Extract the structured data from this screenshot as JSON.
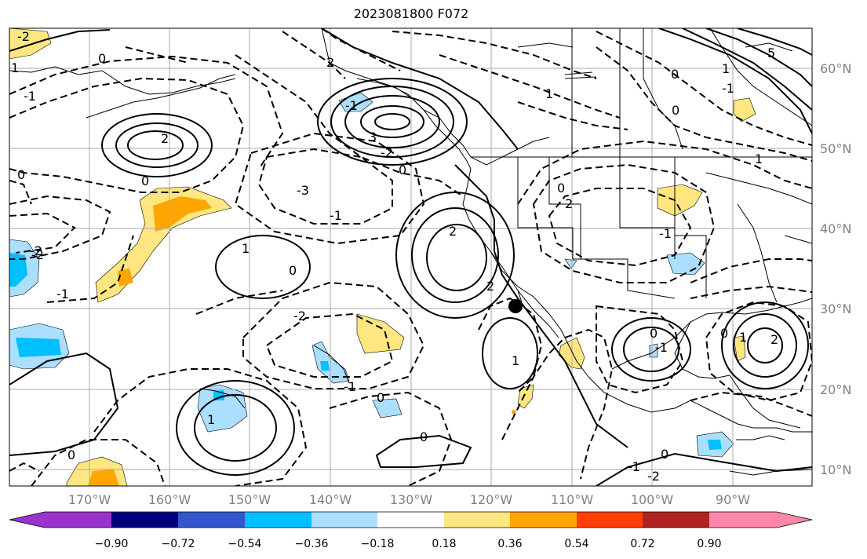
{
  "title": "2023081800 F072",
  "map": {
    "lon_labels": [
      "170°W",
      "160°W",
      "150°W",
      "140°W",
      "130°W",
      "120°W",
      "110°W",
      "100°W",
      "90°W"
    ],
    "lat_labels": [
      "60°N",
      "50°N",
      "40°N",
      "30°N",
      "20°N",
      "10°N"
    ],
    "contour_labels": [
      "-2",
      "-1",
      "0",
      "1",
      "2",
      "3",
      "5",
      "-3",
      "0",
      "-1",
      "2",
      "1",
      "0",
      "-1",
      "-2",
      "0",
      "1",
      "2",
      "0",
      "-2",
      "-1",
      "0",
      "1",
      "2",
      "0",
      "-1",
      "0",
      "1",
      "2",
      "0",
      "-1",
      "0",
      "-1",
      "0",
      "1",
      "1",
      "0",
      "0",
      "-2",
      "-1",
      "1",
      "2",
      "-2",
      "0",
      "-1",
      "-2"
    ]
  },
  "colorbar": {
    "tick_labels": [
      "−0.90",
      "−0.72",
      "−0.54",
      "−0.36",
      "−0.18",
      "0.18",
      "0.36",
      "0.54",
      "0.72",
      "0.90"
    ],
    "colors": [
      "#9933cc",
      "#000080",
      "#3355cc",
      "#00bfff",
      "#aadfff",
      "#ffffff",
      "#ffe680",
      "#ffa500",
      "#ff4000",
      "#b22222",
      "#ff88aa"
    ]
  }
}
